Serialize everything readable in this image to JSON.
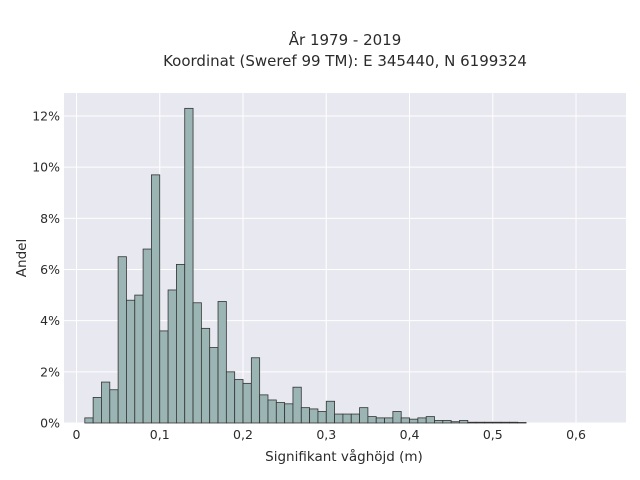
{
  "chart_data": {
    "type": "bar",
    "title": "År 1979 - 2019",
    "subtitle": "Koordinat (Sweref 99 TM): E 345440, N 6199324",
    "xlabel": "Signifikant våghöjd (m)",
    "ylabel": "Andel",
    "bin_width": 0.01,
    "bin_start": 0.01,
    "values": [
      0.2,
      1.0,
      1.6,
      1.3,
      6.5,
      4.8,
      5.0,
      6.8,
      9.7,
      3.6,
      5.2,
      6.2,
      12.3,
      4.7,
      3.7,
      2.95,
      4.75,
      2.0,
      1.7,
      1.55,
      2.55,
      1.1,
      0.9,
      0.8,
      0.75,
      1.4,
      0.6,
      0.55,
      0.45,
      0.85,
      0.35,
      0.35,
      0.35,
      0.6,
      0.25,
      0.2,
      0.2,
      0.45,
      0.2,
      0.15,
      0.2,
      0.25,
      0.1,
      0.1,
      0.05,
      0.1,
      0.03,
      0.03,
      0.03,
      0.03,
      0.03,
      0.03,
      0.02
    ],
    "xlim": [
      -0.015,
      0.66
    ],
    "ylim": [
      0,
      12.9
    ],
    "x_ticks": [
      0,
      0.1,
      0.2,
      0.3,
      0.4,
      0.5,
      0.6
    ],
    "x_tick_labels": [
      "0",
      "0,1",
      "0,2",
      "0,3",
      "0,4",
      "0,5",
      "0,6"
    ],
    "y_ticks": [
      0,
      2,
      4,
      6,
      8,
      10,
      12
    ],
    "y_tick_labels": [
      "0%",
      "2%",
      "4%",
      "6%",
      "8%",
      "10%",
      "12%"
    ],
    "grid": true,
    "colors": {
      "bar_fill": "#9ab5b4",
      "bar_stroke": "#333333",
      "plot_background": "#e8e8f0",
      "grid": "#ffffff"
    }
  }
}
